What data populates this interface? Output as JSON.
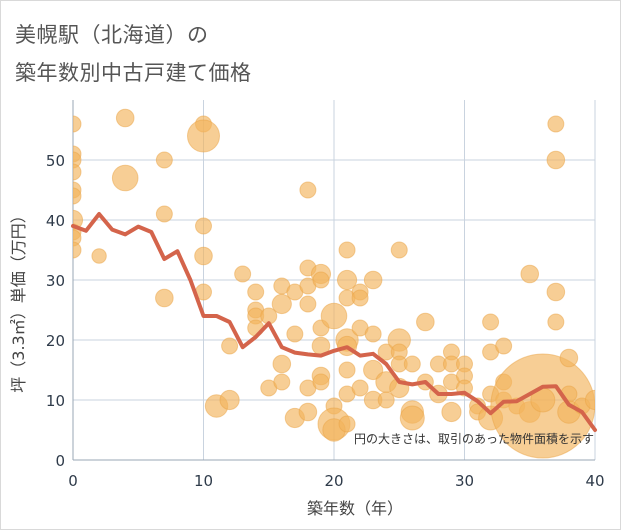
{
  "title_line1": "美幌駅（北海道）の",
  "title_line2": "築年数別中古戸建て価格",
  "chart_data": {
    "type": "scatter",
    "xlabel": "築年数（年）",
    "ylabel": "坪（3.3㎡）単価（万円）",
    "xlim": [
      0,
      40
    ],
    "ylim": [
      0,
      60
    ],
    "x_ticks": [
      "0",
      "10",
      "20",
      "30",
      "40"
    ],
    "y_ticks": [
      "0",
      "10",
      "20",
      "30",
      "40",
      "50"
    ],
    "grid": true,
    "annotation": "円の大きさは、取引のあった物件面積を示す",
    "colors": {
      "bubble": "#f2b45c",
      "line": "#d4644b",
      "grid": "#c9d3df"
    },
    "bubbles": [
      {
        "x": 0,
        "y": 56,
        "s": 1
      },
      {
        "x": 0,
        "y": 51,
        "s": 1
      },
      {
        "x": 0,
        "y": 50,
        "s": 1
      },
      {
        "x": 0,
        "y": 48,
        "s": 1
      },
      {
        "x": 0,
        "y": 45,
        "s": 1
      },
      {
        "x": 0,
        "y": 44,
        "s": 1
      },
      {
        "x": 0,
        "y": 40,
        "s": 1.2
      },
      {
        "x": 0,
        "y": 38,
        "s": 1
      },
      {
        "x": 0,
        "y": 37,
        "s": 1
      },
      {
        "x": 0,
        "y": 35,
        "s": 1
      },
      {
        "x": 2,
        "y": 34,
        "s": 0.9
      },
      {
        "x": 4,
        "y": 57,
        "s": 1.1
      },
      {
        "x": 4,
        "y": 47,
        "s": 1.6
      },
      {
        "x": 7,
        "y": 50,
        "s": 1
      },
      {
        "x": 7,
        "y": 41,
        "s": 1
      },
      {
        "x": 7,
        "y": 27,
        "s": 1.1
      },
      {
        "x": 10,
        "y": 56,
        "s": 1
      },
      {
        "x": 10,
        "y": 54,
        "s": 2
      },
      {
        "x": 10,
        "y": 39,
        "s": 1
      },
      {
        "x": 10,
        "y": 34,
        "s": 1.1
      },
      {
        "x": 10,
        "y": 28,
        "s": 1
      },
      {
        "x": 11,
        "y": 9,
        "s": 1.4
      },
      {
        "x": 12,
        "y": 10,
        "s": 1.2
      },
      {
        "x": 12,
        "y": 19,
        "s": 1
      },
      {
        "x": 13,
        "y": 31,
        "s": 1
      },
      {
        "x": 14,
        "y": 28,
        "s": 1
      },
      {
        "x": 14,
        "y": 25,
        "s": 1
      },
      {
        "x": 14,
        "y": 24,
        "s": 1
      },
      {
        "x": 14,
        "y": 22,
        "s": 1
      },
      {
        "x": 15,
        "y": 24,
        "s": 1
      },
      {
        "x": 15,
        "y": 12,
        "s": 1
      },
      {
        "x": 16,
        "y": 29,
        "s": 1
      },
      {
        "x": 16,
        "y": 26,
        "s": 1.2
      },
      {
        "x": 16,
        "y": 16,
        "s": 1.1
      },
      {
        "x": 16,
        "y": 13,
        "s": 1
      },
      {
        "x": 17,
        "y": 28,
        "s": 1
      },
      {
        "x": 17,
        "y": 21,
        "s": 1
      },
      {
        "x": 17,
        "y": 7,
        "s": 1.2
      },
      {
        "x": 18,
        "y": 45,
        "s": 1
      },
      {
        "x": 18,
        "y": 32,
        "s": 1
      },
      {
        "x": 18,
        "y": 29,
        "s": 1
      },
      {
        "x": 18,
        "y": 26,
        "s": 1
      },
      {
        "x": 18,
        "y": 12,
        "s": 1
      },
      {
        "x": 18,
        "y": 8,
        "s": 1.1
      },
      {
        "x": 19,
        "y": 31,
        "s": 1.2
      },
      {
        "x": 19,
        "y": 30,
        "s": 1
      },
      {
        "x": 19,
        "y": 22,
        "s": 1
      },
      {
        "x": 19,
        "y": 19,
        "s": 1.1
      },
      {
        "x": 19,
        "y": 14,
        "s": 1.1
      },
      {
        "x": 19,
        "y": 13,
        "s": 1
      },
      {
        "x": 20,
        "y": 24,
        "s": 1.6
      },
      {
        "x": 20,
        "y": 9,
        "s": 1
      },
      {
        "x": 20,
        "y": 6,
        "s": 2
      },
      {
        "x": 20,
        "y": 5,
        "s": 1.4
      },
      {
        "x": 21,
        "y": 35,
        "s": 1
      },
      {
        "x": 21,
        "y": 30,
        "s": 1.2
      },
      {
        "x": 21,
        "y": 27,
        "s": 1
      },
      {
        "x": 21,
        "y": 20,
        "s": 1.4
      },
      {
        "x": 21,
        "y": 19,
        "s": 1.2
      },
      {
        "x": 21,
        "y": 15,
        "s": 1
      },
      {
        "x": 21,
        "y": 11,
        "s": 1
      },
      {
        "x": 21,
        "y": 6,
        "s": 1
      },
      {
        "x": 22,
        "y": 28,
        "s": 1
      },
      {
        "x": 22,
        "y": 27,
        "s": 1
      },
      {
        "x": 22,
        "y": 22,
        "s": 1
      },
      {
        "x": 22,
        "y": 12,
        "s": 1
      },
      {
        "x": 23,
        "y": 30,
        "s": 1.1
      },
      {
        "x": 23,
        "y": 21,
        "s": 1
      },
      {
        "x": 23,
        "y": 15,
        "s": 1.2
      },
      {
        "x": 23,
        "y": 10,
        "s": 1.1
      },
      {
        "x": 24,
        "y": 18,
        "s": 1
      },
      {
        "x": 24,
        "y": 13,
        "s": 1.3
      },
      {
        "x": 24,
        "y": 10,
        "s": 1
      },
      {
        "x": 25,
        "y": 35,
        "s": 1
      },
      {
        "x": 25,
        "y": 20,
        "s": 1.4
      },
      {
        "x": 25,
        "y": 18,
        "s": 1
      },
      {
        "x": 25,
        "y": 16,
        "s": 1
      },
      {
        "x": 25,
        "y": 12,
        "s": 1.2
      },
      {
        "x": 26,
        "y": 16,
        "s": 1
      },
      {
        "x": 26,
        "y": 8,
        "s": 1.4
      },
      {
        "x": 26,
        "y": 7,
        "s": 1.5
      },
      {
        "x": 27,
        "y": 23,
        "s": 1.1
      },
      {
        "x": 27,
        "y": 13,
        "s": 1
      },
      {
        "x": 28,
        "y": 16,
        "s": 1
      },
      {
        "x": 28,
        "y": 11,
        "s": 1.1
      },
      {
        "x": 29,
        "y": 18,
        "s": 1
      },
      {
        "x": 29,
        "y": 16,
        "s": 1
      },
      {
        "x": 29,
        "y": 13,
        "s": 1
      },
      {
        "x": 29,
        "y": 8,
        "s": 1.2
      },
      {
        "x": 30,
        "y": 16,
        "s": 1
      },
      {
        "x": 30,
        "y": 14,
        "s": 1
      },
      {
        "x": 30,
        "y": 12,
        "s": 1
      },
      {
        "x": 31,
        "y": 9,
        "s": 1
      },
      {
        "x": 31,
        "y": 8,
        "s": 1
      },
      {
        "x": 32,
        "y": 23,
        "s": 1
      },
      {
        "x": 32,
        "y": 18,
        "s": 1
      },
      {
        "x": 32,
        "y": 11,
        "s": 1
      },
      {
        "x": 32,
        "y": 7,
        "s": 1.5
      },
      {
        "x": 33,
        "y": 19,
        "s": 1
      },
      {
        "x": 33,
        "y": 13,
        "s": 1
      },
      {
        "x": 33,
        "y": 10,
        "s": 1
      },
      {
        "x": 34,
        "y": 9,
        "s": 1
      },
      {
        "x": 35,
        "y": 31,
        "s": 1.1
      },
      {
        "x": 35,
        "y": 8,
        "s": 1.3
      },
      {
        "x": 36,
        "y": 9,
        "s": 6.5
      },
      {
        "x": 36,
        "y": 10,
        "s": 1.5
      },
      {
        "x": 37,
        "y": 56,
        "s": 1
      },
      {
        "x": 37,
        "y": 50,
        "s": 1.1
      },
      {
        "x": 37,
        "y": 28,
        "s": 1.1
      },
      {
        "x": 37,
        "y": 23,
        "s": 1
      },
      {
        "x": 38,
        "y": 17,
        "s": 1.1
      },
      {
        "x": 38,
        "y": 11,
        "s": 1
      },
      {
        "x": 38,
        "y": 8,
        "s": 1.4
      },
      {
        "x": 39,
        "y": 9,
        "s": 1
      },
      {
        "x": 40,
        "y": 10,
        "s": 1.2
      }
    ],
    "trend": {
      "x": [
        0,
        1,
        2,
        3,
        4,
        5,
        6,
        7,
        8,
        9,
        10,
        11,
        12,
        13,
        14,
        15,
        16,
        17,
        18,
        19,
        20,
        21,
        22,
        23,
        24,
        25,
        26,
        27,
        28,
        29,
        30,
        31,
        32,
        33,
        34,
        35,
        36,
        37,
        38,
        39,
        40
      ],
      "y": [
        39,
        38.2,
        41,
        38.4,
        37.6,
        38.9,
        38,
        33.5,
        34.8,
        30,
        24,
        24,
        23,
        18.8,
        20.5,
        22.8,
        18.8,
        17.9,
        17.6,
        17.4,
        18.2,
        18.8,
        17.4,
        17.7,
        16,
        13,
        12.6,
        13,
        11,
        11,
        11.2,
        9.8,
        7.8,
        9.7,
        9.8,
        11,
        12.2,
        12.3,
        9.2,
        8,
        5
      ]
    }
  }
}
